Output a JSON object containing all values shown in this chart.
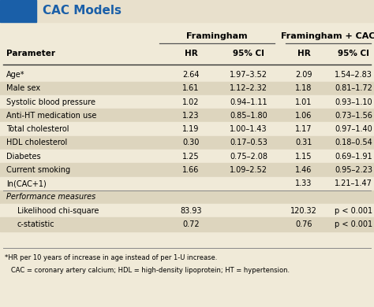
{
  "title": "CAC Models",
  "title_bg": "#e8e0cc",
  "title_color": "#1a5fa8",
  "title_box_color": "#1a5fa8",
  "table_bg": "#f0ead8",
  "header_group1": "Framingham",
  "header_group2": "Framingham + CAC",
  "rows": [
    [
      "Age*",
      "2.64",
      "1.97–3.52",
      "2.09",
      "1.54–2.83"
    ],
    [
      "Male sex",
      "1.61",
      "1.12–2.32",
      "1.18",
      "0.81–1.72"
    ],
    [
      "Systolic blood pressure",
      "1.02",
      "0.94–1.11",
      "1.01",
      "0.93–1.10"
    ],
    [
      "Anti-HT medication use",
      "1.23",
      "0.85–1.80",
      "1.06",
      "0.73–1.56"
    ],
    [
      "Total cholesterol",
      "1.19",
      "1.00–1.43",
      "1.17",
      "0.97–1.40"
    ],
    [
      "HDL cholesterol",
      "0.30",
      "0.17–0.53",
      "0.31",
      "0.18–0.54"
    ],
    [
      "Diabetes",
      "1.25",
      "0.75–2.08",
      "1.15",
      "0.69–1.91"
    ],
    [
      "Current smoking",
      "1.66",
      "1.09–2.52",
      "1.46",
      "0.95–2.23"
    ],
    [
      "ln(CAC+1)",
      "",
      "",
      "1.33",
      "1.21–1.47"
    ],
    [
      "Performance measures",
      "",
      "",
      "",
      ""
    ],
    [
      "Likelihood chi-square",
      "83.93",
      "",
      "120.32",
      "p < 0.001"
    ],
    [
      "c-statistic",
      "0.72",
      "",
      "0.76",
      "p < 0.001"
    ]
  ],
  "footnote1": "*HR per 10 years of increase in age instead of per 1-U increase.",
  "footnote2": "   CAC = coronary artery calcium; HDL = high-density lipoprotein; HT = hypertension.",
  "alt_row_bg": "#ddd5be",
  "normal_row_bg": "#f0ead8",
  "line_color": "#999999"
}
